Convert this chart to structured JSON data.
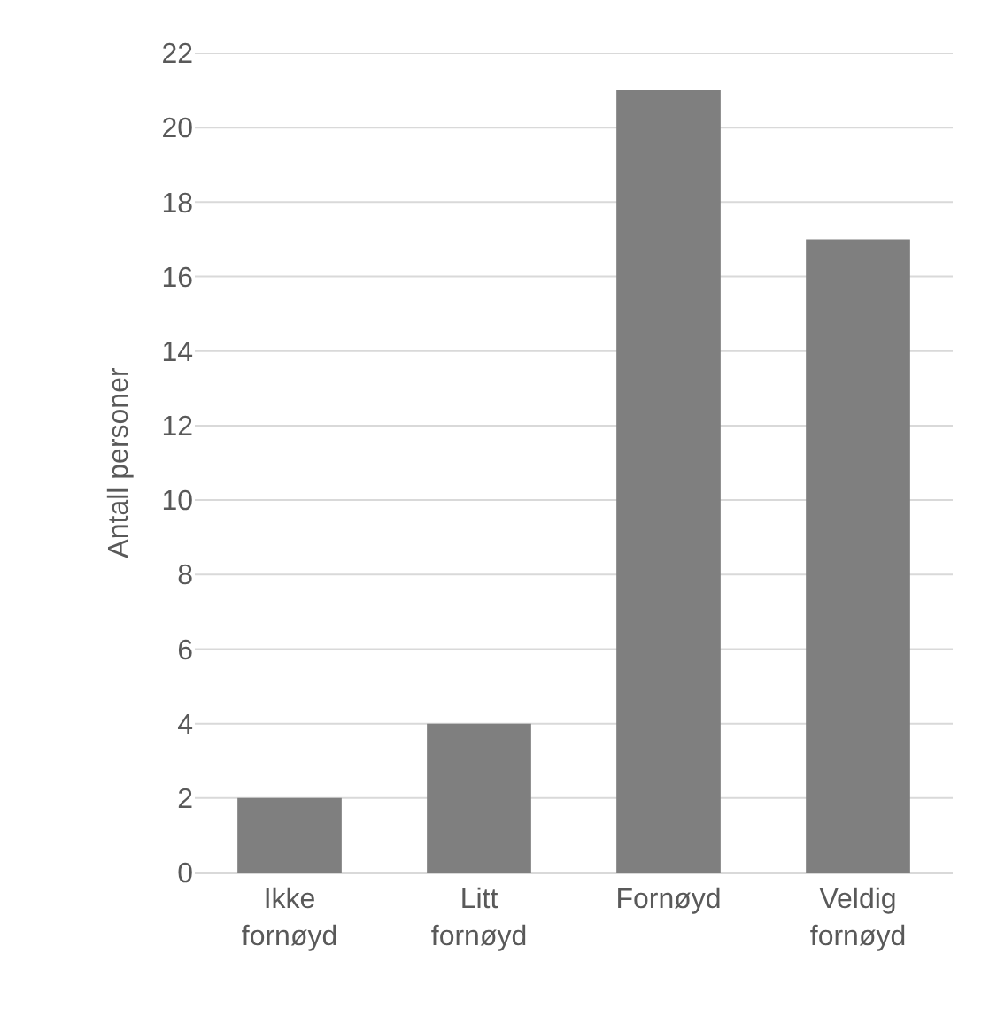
{
  "chart_data": {
    "type": "bar",
    "ylabel": "Antall personer",
    "categories": [
      "Ikke fornøyd",
      "Litt fornøyd",
      "Fornøyd",
      "Veldig fornøyd"
    ],
    "values": [
      2,
      4,
      21,
      17
    ],
    "color": "#7f7f7f",
    "ylim": [
      0,
      22
    ],
    "yticks": [
      0,
      2,
      4,
      6,
      8,
      10,
      12,
      14,
      16,
      18,
      20,
      22
    ],
    "grid": "y"
  }
}
